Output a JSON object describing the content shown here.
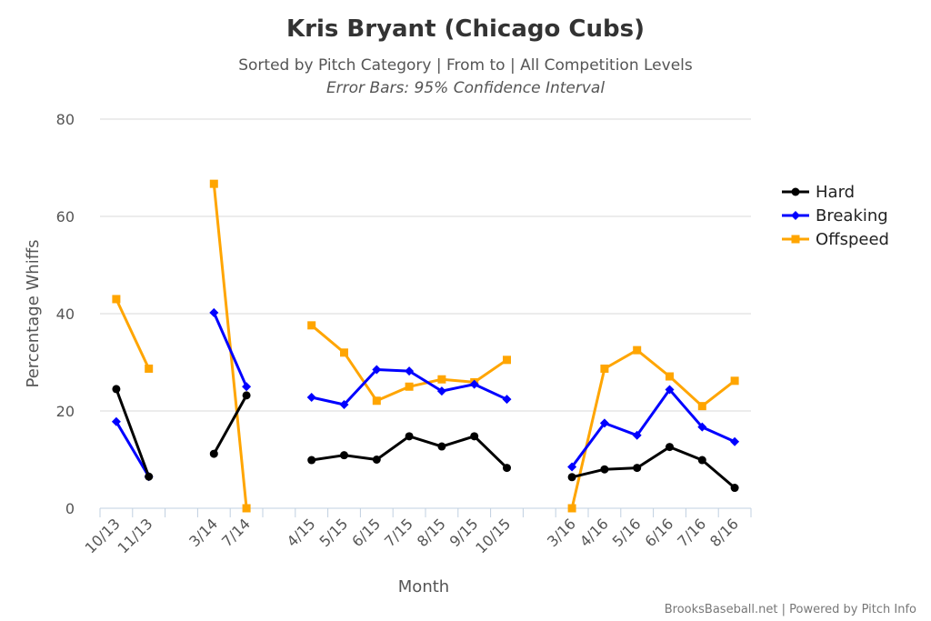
{
  "chart_data": {
    "type": "line",
    "title": "Kris Bryant (Chicago Cubs)",
    "subtitle": "Sorted by Pitch Category | From to | All Competition Levels",
    "subtitle2": "Error Bars: 95% Confidence Interval",
    "xlabel": "Month",
    "ylabel": "Percentage Whiffs",
    "ylim": [
      0,
      80
    ],
    "yticks": [
      0,
      20,
      40,
      60,
      80
    ],
    "grid": true,
    "legend_position": "right",
    "categories": [
      "10/13",
      "11/13",
      "3/14",
      "7/14",
      "4/15",
      "5/15",
      "6/15",
      "7/15",
      "8/15",
      "9/15",
      "10/15",
      "3/16",
      "4/16",
      "5/16",
      "6/16",
      "7/16",
      "8/16"
    ],
    "segments": [
      [
        0,
        1
      ],
      [
        2,
        3
      ],
      [
        4,
        10
      ],
      [
        11,
        16
      ]
    ],
    "series": [
      {
        "name": "Hard",
        "color": "#000000",
        "marker": "circle",
        "values": [
          24.5,
          6.5,
          11.2,
          23.2,
          9.9,
          10.9,
          10.0,
          14.8,
          12.7,
          14.8,
          8.3,
          6.4,
          8.0,
          8.3,
          12.6,
          9.9,
          4.2
        ]
      },
      {
        "name": "Breaking",
        "color": "#0000ff",
        "marker": "diamond",
        "values": [
          17.8,
          6.5,
          40.2,
          25.0,
          22.8,
          21.3,
          28.5,
          28.2,
          24.1,
          25.5,
          22.4,
          8.5,
          17.5,
          15.0,
          24.4,
          16.7,
          13.7
        ]
      },
      {
        "name": "Offspeed",
        "color": "#ffa500",
        "marker": "square",
        "values": [
          43.0,
          28.7,
          66.7,
          0.0,
          37.6,
          32.0,
          22.1,
          25.0,
          26.5,
          25.9,
          30.5,
          0.0,
          28.7,
          32.5,
          27.1,
          21.0,
          26.2
        ]
      }
    ],
    "credits": "BrooksBaseball.net | Powered by Pitch Info"
  }
}
